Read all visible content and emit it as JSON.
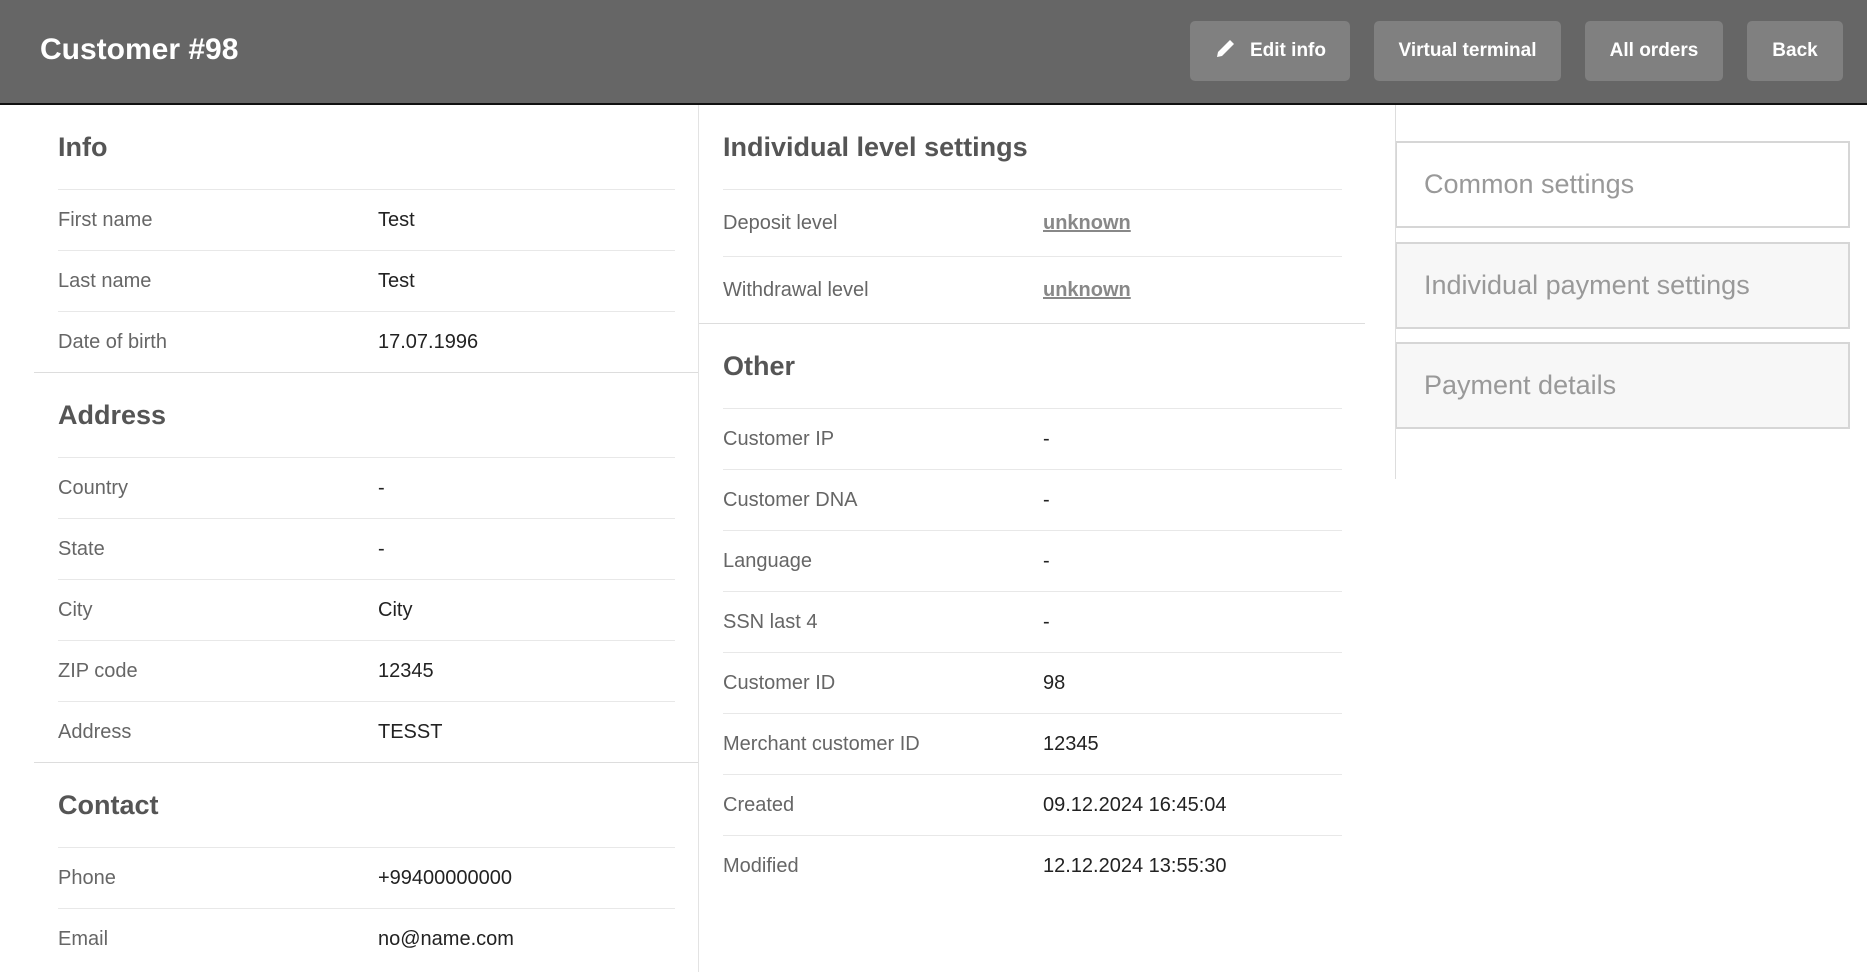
{
  "header": {
    "title": "Customer #98",
    "buttons": {
      "edit": "Edit info",
      "terminal": "Virtual terminal",
      "orders": "All orders",
      "back": "Back"
    }
  },
  "info": {
    "title": "Info",
    "rows": [
      {
        "label": "First name",
        "value": "Test"
      },
      {
        "label": "Last name",
        "value": "Test"
      },
      {
        "label": "Date of birth",
        "value": "17.07.1996"
      }
    ]
  },
  "address": {
    "title": "Address",
    "rows": [
      {
        "label": "Country",
        "value": "-"
      },
      {
        "label": "State",
        "value": "-"
      },
      {
        "label": "City",
        "value": "City"
      },
      {
        "label": "ZIP code",
        "value": "12345"
      },
      {
        "label": "Address",
        "value": "TESST"
      }
    ]
  },
  "contact": {
    "title": "Contact",
    "rows": [
      {
        "label": "Phone",
        "value": "+99400000000"
      },
      {
        "label": "Email",
        "value": "no@name.com"
      }
    ]
  },
  "levels": {
    "title": "Individual level settings",
    "rows": [
      {
        "label": "Deposit level",
        "value": "unknown"
      },
      {
        "label": "Withdrawal level",
        "value": "unknown"
      }
    ]
  },
  "other": {
    "title": "Other",
    "rows": [
      {
        "label": "Customer IP",
        "value": "-"
      },
      {
        "label": "Customer DNA",
        "value": "-"
      },
      {
        "label": "Language",
        "value": "-"
      },
      {
        "label": "SSN last 4",
        "value": "-"
      },
      {
        "label": "Customer ID",
        "value": "98"
      },
      {
        "label": "Merchant customer ID",
        "value": "12345"
      },
      {
        "label": "Created",
        "value": "09.12.2024 16:45:04"
      },
      {
        "label": "Modified",
        "value": "12.12.2024 13:55:30"
      }
    ]
  },
  "nav": {
    "items": [
      {
        "label": "Common settings",
        "active": true
      },
      {
        "label": "Individual payment settings",
        "active": false
      },
      {
        "label": "Payment details",
        "active": false
      }
    ]
  }
}
